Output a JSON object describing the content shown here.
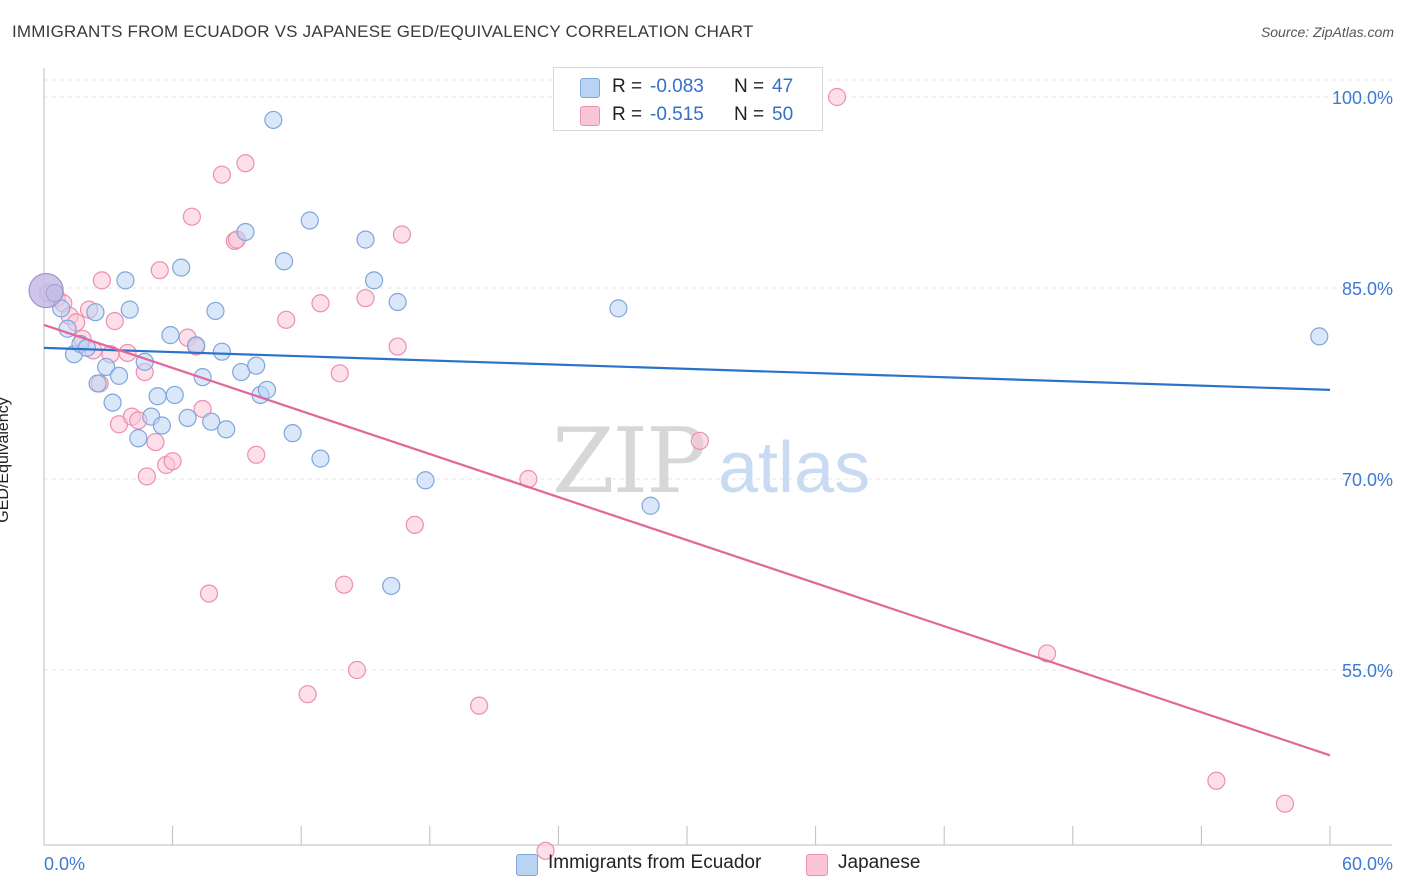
{
  "title": "IMMIGRANTS FROM ECUADOR VS JAPANESE GED/EQUIVALENCY CORRELATION CHART",
  "source": "Source: ZipAtlas.com",
  "watermark": {
    "zip": "ZIP",
    "atlas": "atlas"
  },
  "colors": {
    "blue_fill": "#b9d3f3",
    "blue_stroke": "#7fa6dd",
    "blue_line": "#2b72c9",
    "pink_fill": "#f9c4d6",
    "pink_stroke": "#ec8fb1",
    "pink_line": "#e0689a",
    "axis_text": "#3d7ad0",
    "grid": "#e4e4e4"
  },
  "legend_top": {
    "rows": [
      {
        "r_label": "R =",
        "r_value": "-0.083",
        "n_label": "N =",
        "n_value": "47"
      },
      {
        "r_label": "R =",
        "r_value": "-0.515",
        "n_label": "N =",
        "n_value": "50"
      }
    ]
  },
  "legend_bottom": [
    "Immigrants from Ecuador",
    "Japanese"
  ],
  "chart_data": {
    "type": "scatter",
    "title": "IMMIGRANTS FROM ECUADOR VS JAPANESE GED/EQUIVALENCY CORRELATION CHART",
    "xlabel": "",
    "ylabel": "GED/Equivalency",
    "xlim": [
      0,
      60
    ],
    "ylim": [
      40.5,
      103
    ],
    "x_tick_labels": [
      "0.0%",
      "60.0%"
    ],
    "y_ticks": [
      55,
      70,
      85,
      100
    ],
    "y_tick_labels": [
      "55.0%",
      "70.0%",
      "85.0%",
      "100.0%"
    ],
    "grid": true,
    "legend_position": "top-center",
    "series": [
      {
        "name": "Immigrants from Ecuador",
        "color": "#b9d3f3",
        "trend": {
          "x": [
            0,
            60
          ],
          "y": [
            80.3,
            77.0
          ]
        },
        "points": [
          {
            "x": 0.1,
            "y": 84.8,
            "big": true
          },
          {
            "x": 0.5,
            "y": 84.6
          },
          {
            "x": 0.8,
            "y": 83.4
          },
          {
            "x": 1.1,
            "y": 81.8
          },
          {
            "x": 1.4,
            "y": 79.8
          },
          {
            "x": 1.7,
            "y": 80.6
          },
          {
            "x": 2.0,
            "y": 80.3
          },
          {
            "x": 2.4,
            "y": 83.1
          },
          {
            "x": 2.5,
            "y": 77.5
          },
          {
            "x": 2.9,
            "y": 78.8
          },
          {
            "x": 3.2,
            "y": 76.0
          },
          {
            "x": 3.5,
            "y": 78.1
          },
          {
            "x": 3.8,
            "y": 85.6
          },
          {
            "x": 4.0,
            "y": 83.3
          },
          {
            "x": 4.4,
            "y": 73.2
          },
          {
            "x": 4.7,
            "y": 79.2
          },
          {
            "x": 5.0,
            "y": 74.9
          },
          {
            "x": 5.3,
            "y": 76.5
          },
          {
            "x": 5.5,
            "y": 74.2
          },
          {
            "x": 5.9,
            "y": 81.3
          },
          {
            "x": 6.1,
            "y": 76.6
          },
          {
            "x": 6.4,
            "y": 86.6
          },
          {
            "x": 6.7,
            "y": 74.8
          },
          {
            "x": 7.1,
            "y": 80.5
          },
          {
            "x": 7.4,
            "y": 78.0
          },
          {
            "x": 7.8,
            "y": 74.5
          },
          {
            "x": 8.0,
            "y": 83.2
          },
          {
            "x": 8.3,
            "y": 80.0
          },
          {
            "x": 8.5,
            "y": 73.9
          },
          {
            "x": 9.2,
            "y": 78.4
          },
          {
            "x": 9.4,
            "y": 89.4
          },
          {
            "x": 9.9,
            "y": 78.9
          },
          {
            "x": 10.1,
            "y": 76.6
          },
          {
            "x": 10.4,
            "y": 77.0
          },
          {
            "x": 10.7,
            "y": 98.2
          },
          {
            "x": 11.2,
            "y": 87.1
          },
          {
            "x": 11.6,
            "y": 73.6
          },
          {
            "x": 12.4,
            "y": 90.3
          },
          {
            "x": 12.9,
            "y": 71.6
          },
          {
            "x": 15.0,
            "y": 88.8
          },
          {
            "x": 15.4,
            "y": 85.6
          },
          {
            "x": 16.2,
            "y": 61.6
          },
          {
            "x": 16.5,
            "y": 83.9
          },
          {
            "x": 17.8,
            "y": 69.9
          },
          {
            "x": 26.8,
            "y": 83.4
          },
          {
            "x": 28.3,
            "y": 67.9
          },
          {
            "x": 59.5,
            "y": 81.2
          }
        ]
      },
      {
        "name": "Japanese",
        "color": "#f9c4d6",
        "trend": {
          "x": [
            0,
            60
          ],
          "y": [
            82.1,
            48.3
          ]
        },
        "points": [
          {
            "x": 0.2,
            "y": 84.6
          },
          {
            "x": 0.6,
            "y": 84.2
          },
          {
            "x": 0.9,
            "y": 83.8
          },
          {
            "x": 1.2,
            "y": 82.8
          },
          {
            "x": 1.5,
            "y": 82.3
          },
          {
            "x": 1.8,
            "y": 81.0
          },
          {
            "x": 2.1,
            "y": 83.3
          },
          {
            "x": 2.3,
            "y": 80.1
          },
          {
            "x": 2.6,
            "y": 77.5
          },
          {
            "x": 2.7,
            "y": 85.6
          },
          {
            "x": 3.1,
            "y": 79.8
          },
          {
            "x": 3.3,
            "y": 82.4
          },
          {
            "x": 3.5,
            "y": 74.3
          },
          {
            "x": 3.9,
            "y": 79.9
          },
          {
            "x": 4.1,
            "y": 74.9
          },
          {
            "x": 4.4,
            "y": 74.6
          },
          {
            "x": 4.7,
            "y": 78.4
          },
          {
            "x": 4.8,
            "y": 70.2
          },
          {
            "x": 5.2,
            "y": 72.9
          },
          {
            "x": 5.4,
            "y": 86.4
          },
          {
            "x": 5.7,
            "y": 71.1
          },
          {
            "x": 6.0,
            "y": 71.4
          },
          {
            "x": 6.7,
            "y": 81.1
          },
          {
            "x": 6.9,
            "y": 90.6
          },
          {
            "x": 7.1,
            "y": 80.4
          },
          {
            "x": 7.4,
            "y": 75.5
          },
          {
            "x": 7.7,
            "y": 61.0
          },
          {
            "x": 8.3,
            "y": 93.9
          },
          {
            "x": 8.9,
            "y": 88.7
          },
          {
            "x": 9.0,
            "y": 88.8
          },
          {
            "x": 9.4,
            "y": 94.8
          },
          {
            "x": 9.9,
            "y": 71.9
          },
          {
            "x": 11.3,
            "y": 82.5
          },
          {
            "x": 12.3,
            "y": 53.1
          },
          {
            "x": 12.9,
            "y": 83.8
          },
          {
            "x": 13.8,
            "y": 78.3
          },
          {
            "x": 14.0,
            "y": 61.7
          },
          {
            "x": 14.6,
            "y": 55.0
          },
          {
            "x": 15.0,
            "y": 84.2
          },
          {
            "x": 16.5,
            "y": 80.4
          },
          {
            "x": 16.7,
            "y": 89.2
          },
          {
            "x": 17.3,
            "y": 66.4
          },
          {
            "x": 20.3,
            "y": 52.2
          },
          {
            "x": 22.6,
            "y": 70.0
          },
          {
            "x": 23.4,
            "y": 40.8
          },
          {
            "x": 30.6,
            "y": 73.0
          },
          {
            "x": 37.0,
            "y": 100.0
          },
          {
            "x": 46.8,
            "y": 56.3
          },
          {
            "x": 54.7,
            "y": 46.3
          },
          {
            "x": 57.9,
            "y": 44.5
          }
        ]
      }
    ]
  }
}
